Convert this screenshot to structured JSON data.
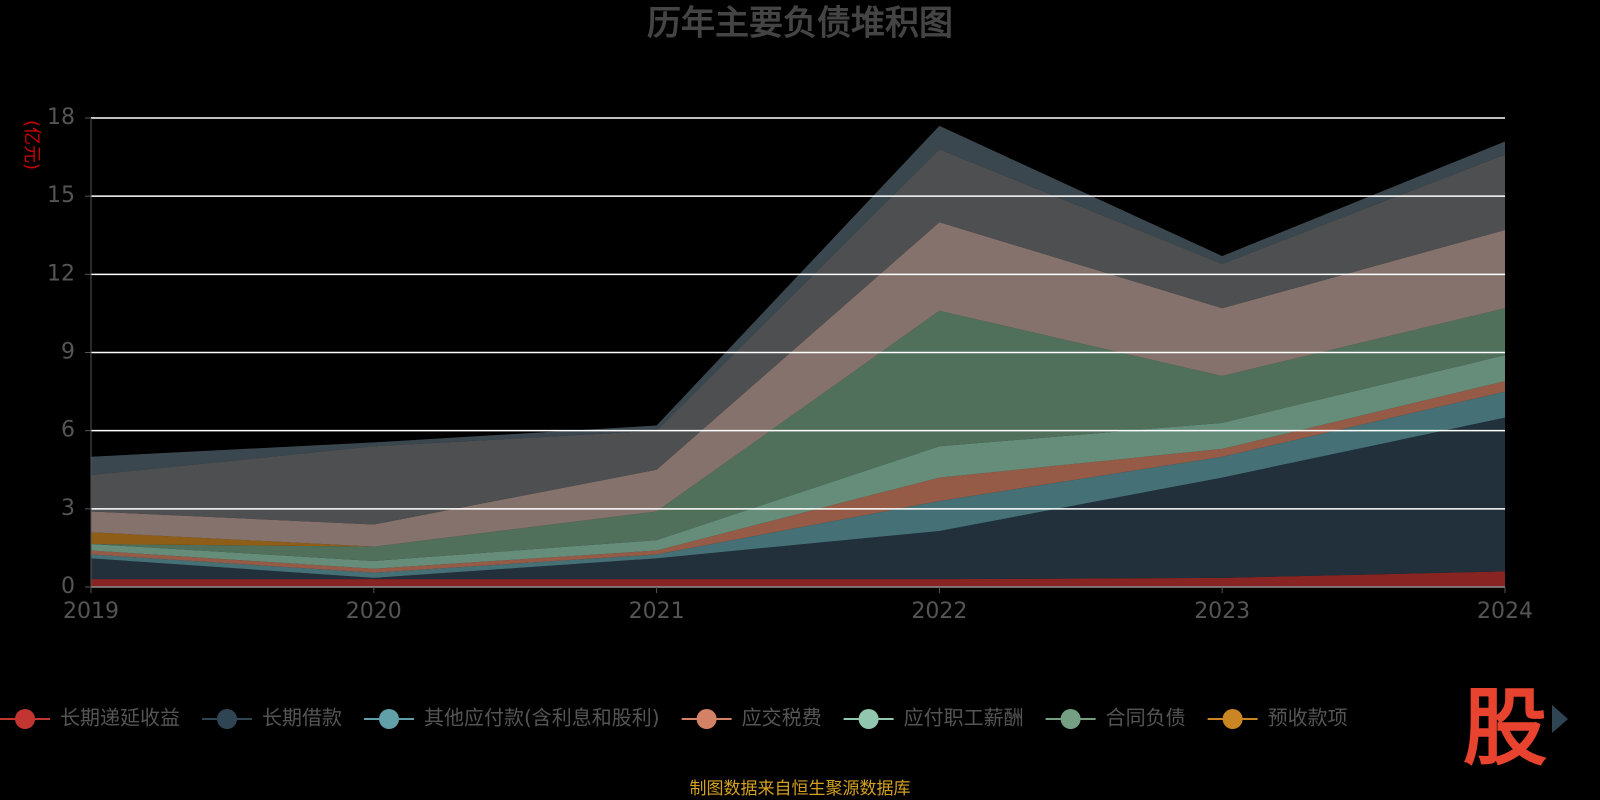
{
  "chart_data": {
    "type": "area",
    "stacked": true,
    "title": "历年主要负债堆积图",
    "unit": "(亿元)",
    "source": "制图数据来自恒生聚源数据库",
    "watermark": "股",
    "categories": [
      "2019",
      "2020",
      "2021",
      "2022",
      "2023",
      "2024"
    ],
    "ylim": [
      0,
      18
    ],
    "yticks": [
      0,
      3,
      6,
      9,
      12,
      15,
      18
    ],
    "grid": true,
    "series": [
      {
        "name": "长期递延收益",
        "color": "#c23531",
        "values": [
          0.3,
          0.3,
          0.3,
          0.3,
          0.35,
          0.6
        ]
      },
      {
        "name": "长期借款",
        "color": "#2f4554",
        "values": [
          0.8,
          0.05,
          0.8,
          1.85,
          3.85,
          5.9
        ]
      },
      {
        "name": "其他应付款(含利息和股利)",
        "color": "#61a0a8",
        "values": [
          0.15,
          0.2,
          0.15,
          1.15,
          0.8,
          1.0
        ]
      },
      {
        "name": "应交税费",
        "color": "#d48265",
        "values": [
          0.15,
          0.15,
          0.15,
          0.9,
          0.3,
          0.4
        ]
      },
      {
        "name": "应付职工薪酬",
        "color": "#91c7ae",
        "values": [
          0.25,
          0.3,
          0.4,
          1.2,
          1.0,
          1.0
        ]
      },
      {
        "name": "合同负债",
        "color": "#749f83",
        "values": [
          0,
          0.55,
          1.1,
          5.2,
          1.8,
          1.8
        ]
      },
      {
        "name": "预收款项",
        "color": "#ca8622",
        "values": [
          0.45,
          0,
          0,
          0,
          0,
          0
        ]
      },
      {
        "color": "#bda29a",
        "values": [
          0.8,
          0.85,
          1.6,
          3.4,
          2.6,
          3.0
        ]
      },
      {
        "color": "#6e7074",
        "values": [
          1.4,
          3.0,
          1.5,
          2.8,
          1.7,
          2.9
        ]
      },
      {
        "color": "#546570",
        "values": [
          0.7,
          0.15,
          0.2,
          0.9,
          0.3,
          0.5
        ]
      }
    ]
  }
}
